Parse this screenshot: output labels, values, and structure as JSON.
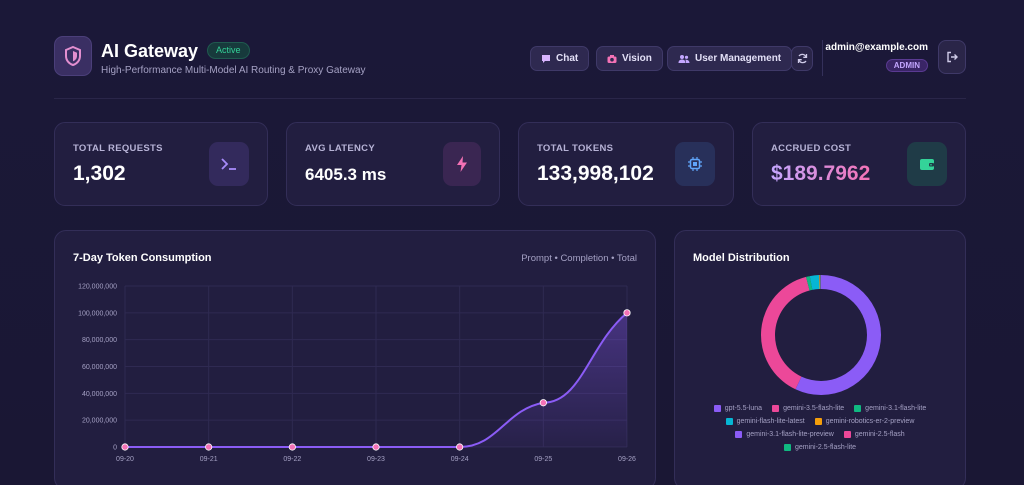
{
  "header": {
    "title": "AI Gateway",
    "status": "Active",
    "subtitle": "High-Performance Multi-Model AI Routing & Proxy Gateway",
    "nav": [
      {
        "label": "Chat",
        "icon": "chat-icon"
      },
      {
        "label": "Vision",
        "icon": "camera-icon"
      },
      {
        "label": "User Management",
        "icon": "users-icon"
      }
    ],
    "user_email": "admin@example.com",
    "user_role": "ADMIN"
  },
  "stats": [
    {
      "label": "TOTAL REQUESTS",
      "value": "1,302",
      "icon": "terminal-icon",
      "color": "#a78bfa"
    },
    {
      "label": "AVG LATENCY",
      "value": "6405.3 ms",
      "icon": "lightning-icon",
      "color": "#f472b6"
    },
    {
      "label": "TOTAL TOKENS",
      "value": "133,998,102",
      "icon": "chip-icon",
      "color": "#60a5fa"
    },
    {
      "label": "ACCRUED COST",
      "value": "$189.7962",
      "icon": "wallet-icon",
      "color": "#34d399"
    }
  ],
  "token_chart": {
    "title": "7-Day Token Consumption",
    "legend": "Prompt • Completion • Total"
  },
  "chart_data": [
    {
      "type": "line",
      "title": "7-Day Token Consumption",
      "x": [
        "09-20",
        "09-21",
        "09-22",
        "09-23",
        "09-24",
        "09-25",
        "09-26"
      ],
      "series": [
        {
          "values": [
            0,
            0,
            0,
            0,
            0,
            33000000,
            100000000
          ]
        }
      ],
      "yticks": [
        "0",
        "20,000,000",
        "40,000,000",
        "60,000,000",
        "80,000,000",
        "100,000,000",
        "120,000,000"
      ],
      "ylim": [
        0,
        120000000
      ],
      "grid": true,
      "colors": {
        "line": "#8b5cf6",
        "point": "#f472b6"
      }
    },
    {
      "type": "pie",
      "title": "Model Distribution",
      "labels": [
        "gpt-5.5-luna",
        "gemini-3.5-flash-lite",
        "gemini-3.1-flash-lite",
        "gemini-flash-lite-latest",
        "gemini-robotics-er-2-preview",
        "gemini-3.1-flash-lite-preview",
        "gemini-2.5-flash",
        "gemini-2.5-flash-lite"
      ],
      "values": [
        57,
        39,
        1,
        2.5,
        0.2,
        0.1,
        0.1,
        0.1
      ],
      "colors": [
        "#8b5cf6",
        "#ec4899",
        "#10b981",
        "#06b6d4",
        "#f59e0b",
        "#8b5cf6",
        "#ec4899",
        "#10b981"
      ],
      "donut": true
    }
  ]
}
